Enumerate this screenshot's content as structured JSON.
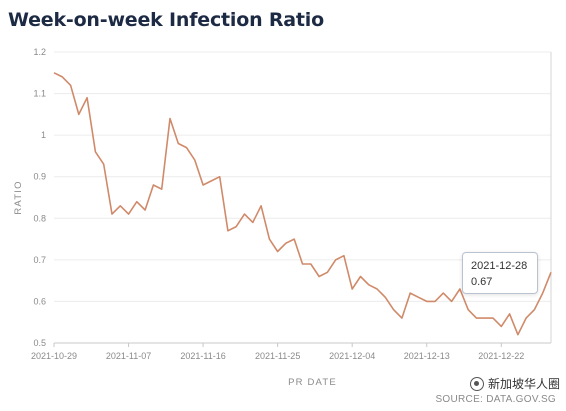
{
  "title": "Week-on-week Infection Ratio",
  "watermark": "新加坡华人圈",
  "source": "SOURCE: DATA.GOV.SG",
  "tooltip": {
    "date": "2021-12-28",
    "value": "0.67"
  },
  "chart_data": {
    "type": "line",
    "xlabel": "PR DATE",
    "ylabel": "RATIO",
    "ylim": [
      0.5,
      1.2
    ],
    "yticks": [
      0.5,
      0.6,
      0.7,
      0.8,
      0.9,
      1,
      1.1,
      1.2
    ],
    "ytick_labels": [
      "0.5",
      "0.6",
      "0.7",
      "0.8",
      "0.9",
      "1",
      "1.1",
      "1.2"
    ],
    "xticks": [
      "2021-10-29",
      "2021-11-07",
      "2021-11-16",
      "2021-11-25",
      "2021-12-04",
      "2021-12-13",
      "2021-12-22"
    ],
    "grid": true,
    "line_color": "#d08a6a",
    "x": [
      "2021-10-29",
      "2021-10-30",
      "2021-10-31",
      "2021-11-01",
      "2021-11-02",
      "2021-11-03",
      "2021-11-04",
      "2021-11-05",
      "2021-11-06",
      "2021-11-07",
      "2021-11-08",
      "2021-11-09",
      "2021-11-10",
      "2021-11-11",
      "2021-11-12",
      "2021-11-13",
      "2021-11-14",
      "2021-11-15",
      "2021-11-16",
      "2021-11-17",
      "2021-11-18",
      "2021-11-19",
      "2021-11-20",
      "2021-11-21",
      "2021-11-22",
      "2021-11-23",
      "2021-11-24",
      "2021-11-25",
      "2021-11-26",
      "2021-11-27",
      "2021-11-28",
      "2021-11-29",
      "2021-11-30",
      "2021-12-01",
      "2021-12-02",
      "2021-12-03",
      "2021-12-04",
      "2021-12-05",
      "2021-12-06",
      "2021-12-07",
      "2021-12-08",
      "2021-12-09",
      "2021-12-10",
      "2021-12-11",
      "2021-12-12",
      "2021-12-13",
      "2021-12-14",
      "2021-12-15",
      "2021-12-16",
      "2021-12-17",
      "2021-12-18",
      "2021-12-19",
      "2021-12-20",
      "2021-12-21",
      "2021-12-22",
      "2021-12-23",
      "2021-12-24",
      "2021-12-25",
      "2021-12-26",
      "2021-12-27",
      "2021-12-28"
    ],
    "y": [
      1.15,
      1.14,
      1.12,
      1.05,
      1.09,
      0.96,
      0.93,
      0.81,
      0.83,
      0.81,
      0.84,
      0.82,
      0.88,
      0.87,
      1.04,
      0.98,
      0.97,
      0.94,
      0.88,
      0.89,
      0.9,
      0.77,
      0.78,
      0.81,
      0.79,
      0.83,
      0.75,
      0.72,
      0.74,
      0.75,
      0.69,
      0.69,
      0.66,
      0.67,
      0.7,
      0.71,
      0.63,
      0.66,
      0.64,
      0.63,
      0.61,
      0.58,
      0.56,
      0.62,
      0.61,
      0.6,
      0.6,
      0.62,
      0.6,
      0.63,
      0.58,
      0.56,
      0.56,
      0.56,
      0.54,
      0.57,
      0.52,
      0.56,
      0.58,
      0.62,
      0.67
    ]
  }
}
